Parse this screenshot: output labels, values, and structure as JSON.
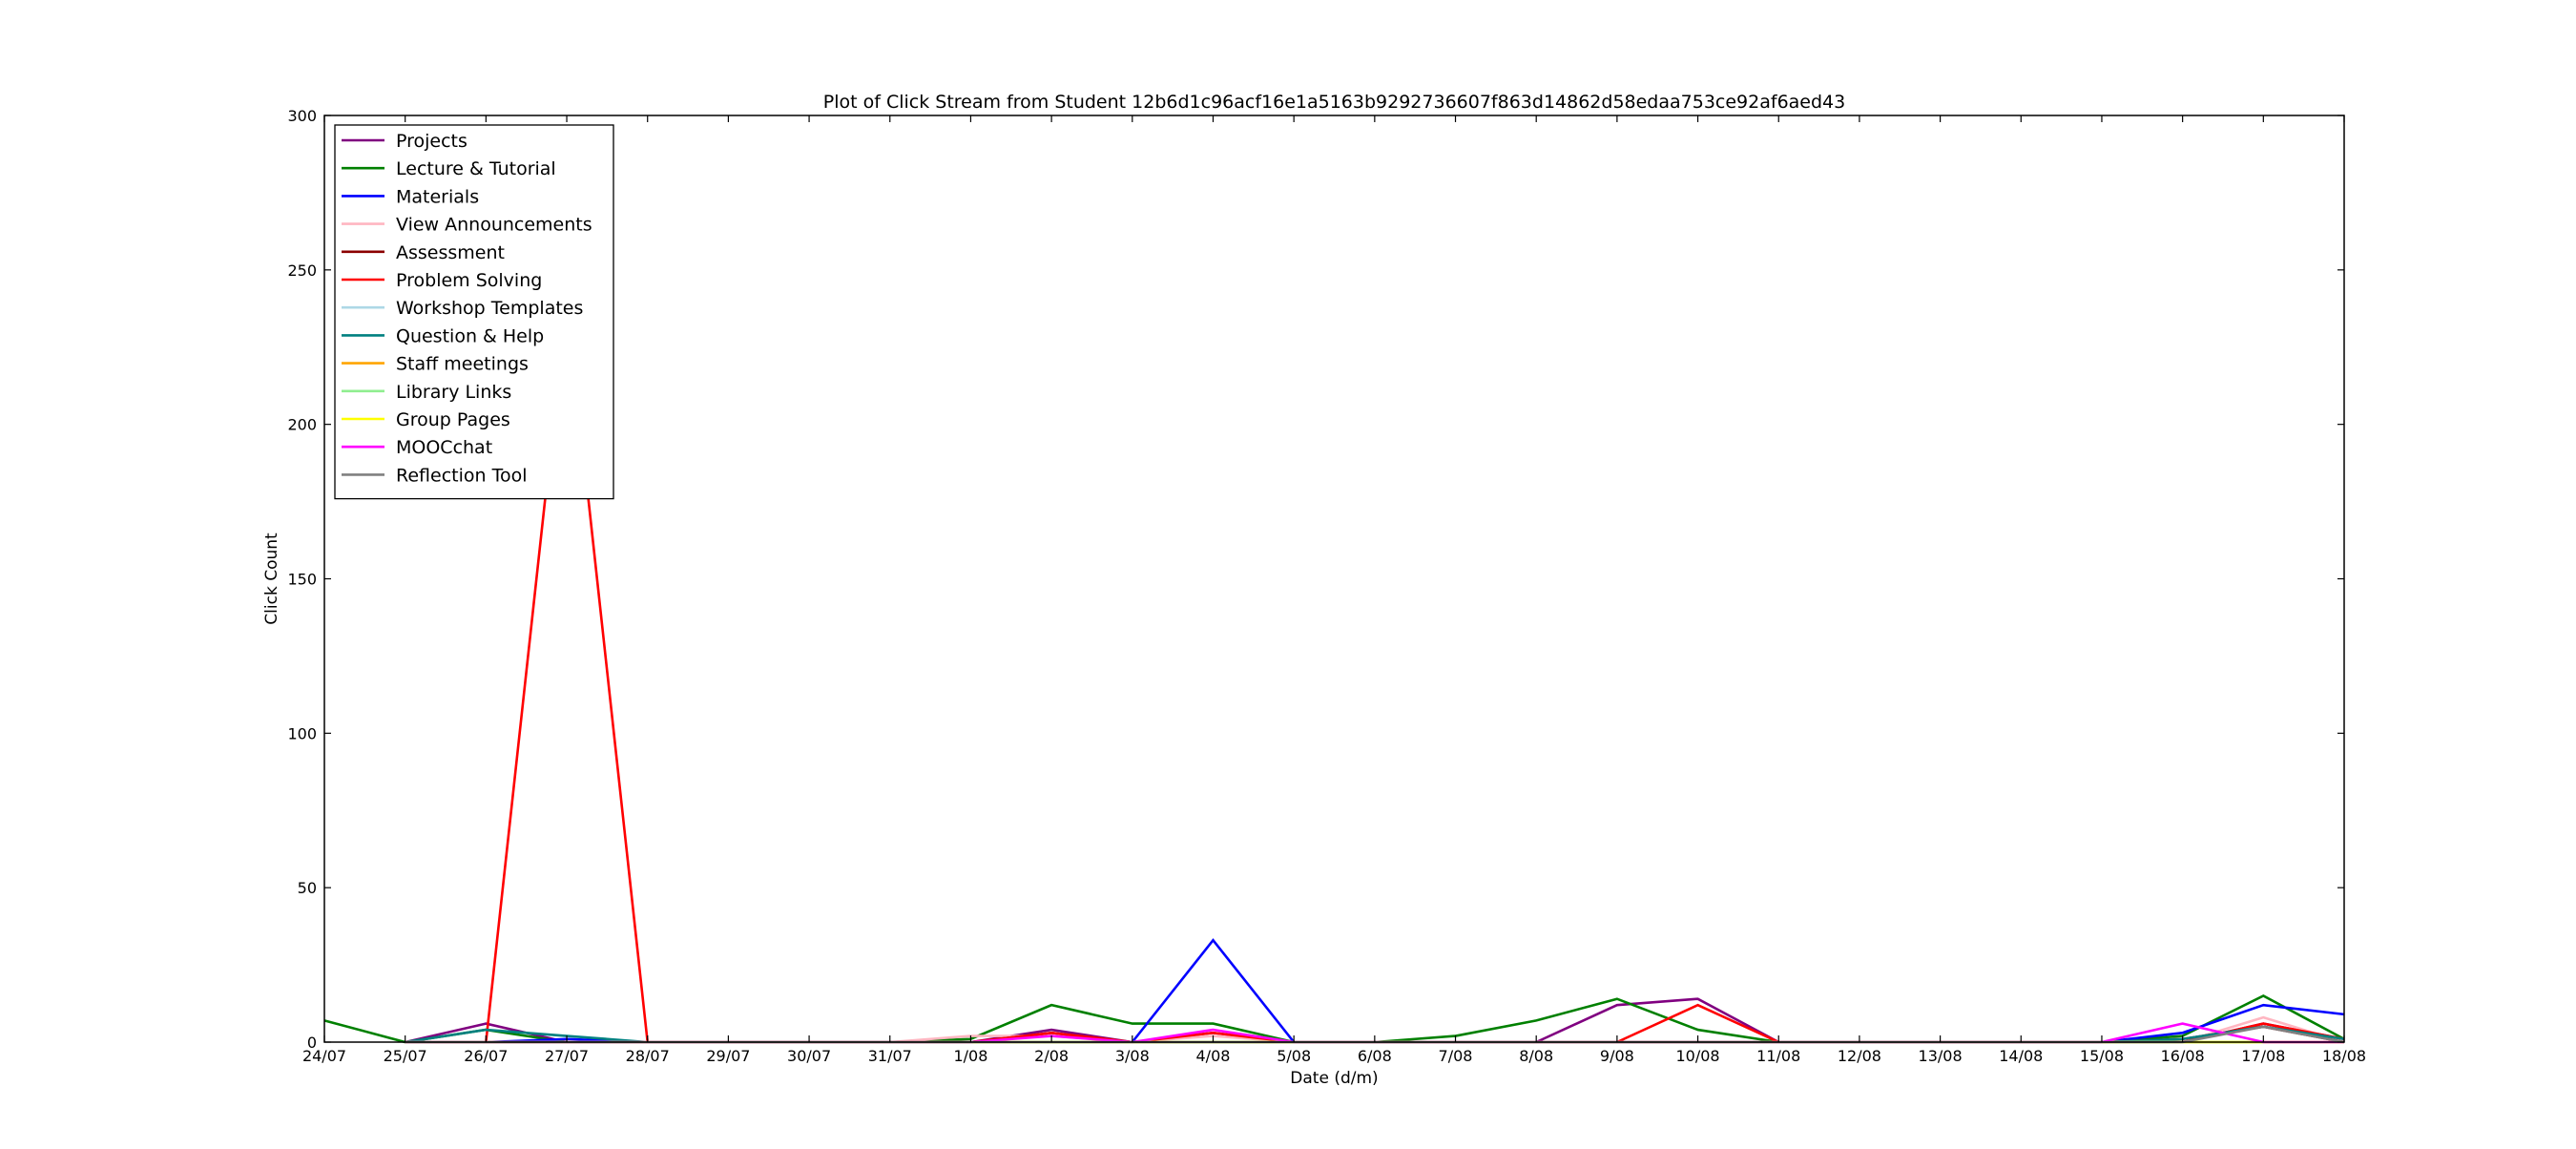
{
  "chart_data": {
    "type": "line",
    "title": "Plot of Click Stream from Student 12b6d1c96acf16e1a5163b9292736607f863d14862d58edaa753ce92af6aed43",
    "xlabel": "Date (d/m)",
    "ylabel": "Click Count",
    "ylim": [
      0,
      300
    ],
    "yticks": [
      0,
      50,
      100,
      150,
      200,
      250,
      300
    ],
    "grid": false,
    "legend_position": "top-left",
    "categories": [
      "24/07",
      "25/07",
      "26/07",
      "27/07",
      "28/07",
      "29/07",
      "30/07",
      "31/07",
      "1/08",
      "2/08",
      "3/08",
      "4/08",
      "5/08",
      "6/08",
      "7/08",
      "8/08",
      "9/08",
      "10/08",
      "11/08",
      "12/08",
      "13/08",
      "14/08",
      "15/08",
      "16/08",
      "17/08",
      "18/08"
    ],
    "series": [
      {
        "name": "Projects",
        "color": "#800080",
        "values": [
          null,
          0,
          6,
          0,
          0,
          0,
          0,
          0,
          0,
          4,
          0,
          3,
          0,
          0,
          0,
          0,
          12,
          14,
          0,
          0,
          0,
          0,
          0,
          0,
          6,
          1
        ]
      },
      {
        "name": "Lecture & Tutorial",
        "color": "#008000",
        "values": [
          7,
          0,
          4,
          0,
          0,
          0,
          0,
          0,
          1,
          12,
          6,
          6,
          0,
          0,
          2,
          7,
          14,
          4,
          0,
          0,
          0,
          0,
          0,
          2,
          15,
          1
        ]
      },
      {
        "name": "Materials",
        "color": "#0000ff",
        "values": [
          null,
          0,
          0,
          1,
          0,
          0,
          0,
          0,
          0,
          0,
          0,
          33,
          0,
          0,
          0,
          0,
          0,
          0,
          0,
          0,
          0,
          0,
          0,
          3,
          12,
          9
        ]
      },
      {
        "name": "View Announcements",
        "color": "#ffb6c1",
        "values": [
          null,
          0,
          0,
          0,
          0,
          0,
          0,
          0,
          2,
          2,
          0,
          2,
          0,
          0,
          0,
          0,
          0,
          0,
          0,
          0,
          0,
          0,
          0,
          0,
          8,
          0
        ]
      },
      {
        "name": "Assessment",
        "color": "#8b0000",
        "values": [
          null,
          0,
          0,
          0,
          0,
          0,
          0,
          0,
          0,
          3,
          0,
          0,
          0,
          0,
          0,
          0,
          0,
          0,
          0,
          0,
          0,
          0,
          0,
          1,
          5,
          0
        ]
      },
      {
        "name": "Problem Solving",
        "color": "#ff0000",
        "values": [
          null,
          null,
          0,
          240,
          0,
          0,
          0,
          0,
          0,
          3,
          0,
          3,
          0,
          0,
          0,
          0,
          0,
          12,
          0,
          0,
          0,
          0,
          0,
          0,
          6,
          1
        ]
      },
      {
        "name": "Workshop Templates",
        "color": "#add8e6",
        "values": [
          null,
          0,
          0,
          0,
          0,
          0,
          0,
          0,
          0,
          0,
          0,
          0,
          0,
          0,
          0,
          0,
          0,
          0,
          0,
          0,
          0,
          0,
          0,
          0,
          0,
          0
        ]
      },
      {
        "name": "Question & Help",
        "color": "#008080",
        "values": [
          null,
          0,
          4,
          2,
          0,
          0,
          0,
          0,
          0,
          0,
          0,
          0,
          0,
          0,
          0,
          0,
          0,
          0,
          0,
          0,
          0,
          0,
          0,
          1,
          5,
          1
        ]
      },
      {
        "name": "Staff meetings",
        "color": "#ffa500",
        "values": [
          null,
          0,
          0,
          0,
          0,
          0,
          0,
          0,
          0,
          0,
          0,
          0,
          0,
          0,
          0,
          0,
          0,
          0,
          0,
          0,
          0,
          0,
          0,
          0,
          0,
          0
        ]
      },
      {
        "name": "Library Links",
        "color": "#90ee90",
        "values": [
          null,
          0,
          0,
          0,
          0,
          0,
          0,
          0,
          0,
          0,
          0,
          0,
          0,
          0,
          0,
          0,
          0,
          0,
          0,
          0,
          0,
          0,
          0,
          0,
          0,
          0
        ]
      },
      {
        "name": "Group Pages",
        "color": "#ffff00",
        "values": [
          null,
          0,
          0,
          0,
          0,
          0,
          0,
          0,
          0,
          0,
          0,
          0,
          0,
          0,
          0,
          0,
          0,
          0,
          0,
          0,
          0,
          0,
          0,
          0,
          0,
          0
        ]
      },
      {
        "name": "MOOCchat",
        "color": "#ff00ff",
        "values": [
          null,
          0,
          0,
          0,
          0,
          0,
          0,
          0,
          0,
          2,
          0,
          4,
          0,
          0,
          0,
          0,
          0,
          0,
          0,
          0,
          0,
          0,
          0,
          6,
          0,
          0
        ]
      },
      {
        "name": "Reflection Tool",
        "color": "#808080",
        "values": [
          null,
          0,
          0,
          0,
          0,
          0,
          0,
          0,
          0,
          0,
          0,
          0,
          0,
          0,
          0,
          0,
          0,
          0,
          0,
          0,
          0,
          0,
          0,
          0,
          5,
          0
        ]
      }
    ]
  }
}
